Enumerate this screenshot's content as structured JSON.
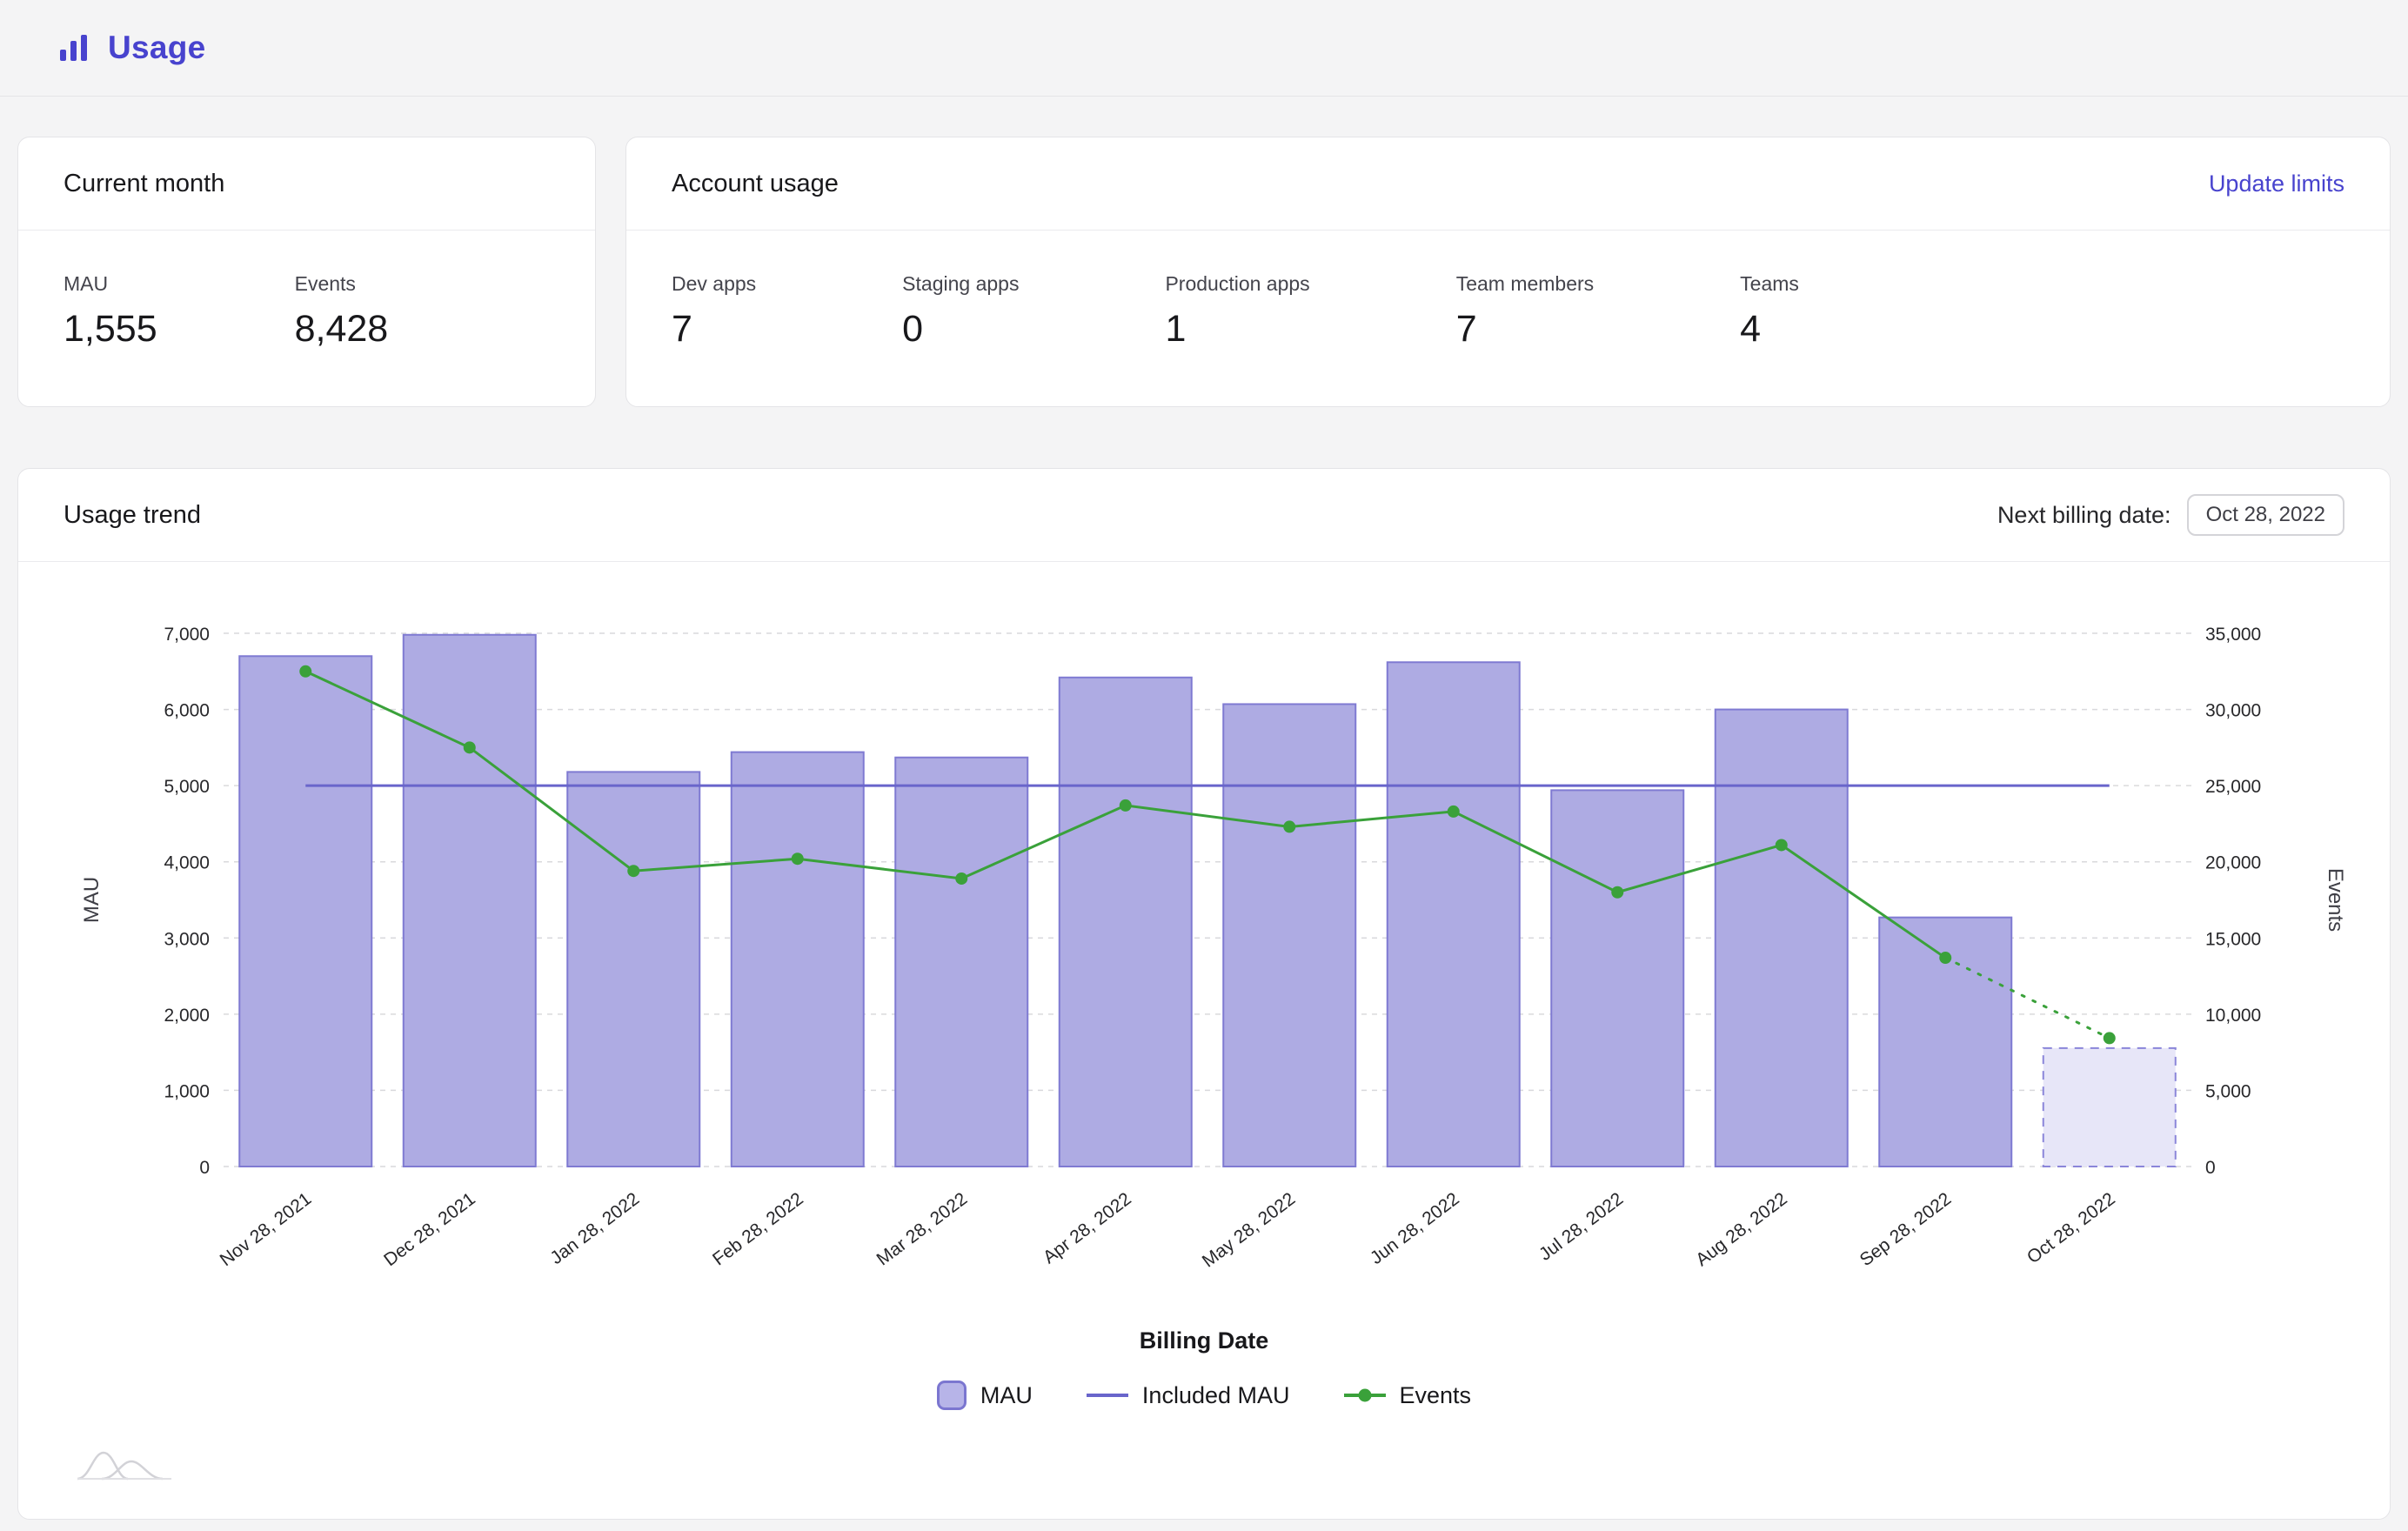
{
  "page": {
    "title": "Usage"
  },
  "current_month": {
    "title": "Current month",
    "stats": [
      {
        "label": "MAU",
        "value": "1,555"
      },
      {
        "label": "Events",
        "value": "8,428"
      }
    ]
  },
  "account_usage": {
    "title": "Account usage",
    "action": "Update limits",
    "stats": [
      {
        "label": "Dev apps",
        "value": "7"
      },
      {
        "label": "Staging apps",
        "value": "0"
      },
      {
        "label": "Production apps",
        "value": "1"
      },
      {
        "label": "Team members",
        "value": "7"
      },
      {
        "label": "Teams",
        "value": "4"
      }
    ]
  },
  "usage_trend": {
    "title": "Usage trend",
    "billing_label": "Next billing date:",
    "billing_value": "Oct 28, 2022"
  },
  "colors": {
    "accent_indigo": "#4843ce",
    "bar_fill": "#aeabe3",
    "bar_stroke": "#7f7ad2",
    "events_green": "#3aa13a",
    "page_background": "#f4f4f5"
  },
  "chart_data": {
    "type": "bar+line combo",
    "title": "Usage trend",
    "categories": [
      "Nov 28, 2021",
      "Dec 28, 2021",
      "Jan 28, 2022",
      "Feb 28, 2022",
      "Mar 28, 2022",
      "Apr 28, 2022",
      "May 28, 2022",
      "Jun 28, 2022",
      "Jul 28, 2022",
      "Aug 28, 2022",
      "Sep 28, 2022",
      "Oct 28, 2022"
    ],
    "series": [
      {
        "name": "MAU",
        "type": "bar",
        "axis": "left",
        "projected_last": true,
        "values": [
          6700,
          6980,
          5180,
          5440,
          5370,
          6420,
          6070,
          6620,
          4940,
          6000,
          3270,
          1555
        ]
      },
      {
        "name": "Included MAU",
        "type": "line",
        "axis": "left",
        "projected_last": false,
        "values": [
          5000,
          5000,
          5000,
          5000,
          5000,
          5000,
          5000,
          5000,
          5000,
          5000,
          5000,
          5000
        ]
      },
      {
        "name": "Events",
        "type": "line",
        "axis": "right",
        "projected_last": true,
        "values": [
          32500,
          27500,
          19400,
          20200,
          18900,
          23700,
          22300,
          23300,
          18000,
          21100,
          13700,
          8428
        ]
      }
    ],
    "left_axis": {
      "label": "MAU",
      "min": 0,
      "max": 7000,
      "step": 1000
    },
    "right_axis": {
      "label": "Events",
      "min": 0,
      "max": 35000,
      "step": 5000
    },
    "x_axis": {
      "label": "Billing Date"
    },
    "legend": [
      "MAU",
      "Included MAU",
      "Events"
    ],
    "grid": "horizontal dashed",
    "legend_position": "bottom center",
    "style": {
      "bar_fill": "#aeabe3",
      "bar_stroke": "#7f7ad2",
      "bar_projected_fill": "#e7e6f8",
      "bar_projected_stroke": "#8a85d9",
      "included": "#6965cb",
      "events": "#3aa13a",
      "grid": "#d9d9dc",
      "tick": "#27272a",
      "axis_title": "#3f3f46"
    }
  }
}
